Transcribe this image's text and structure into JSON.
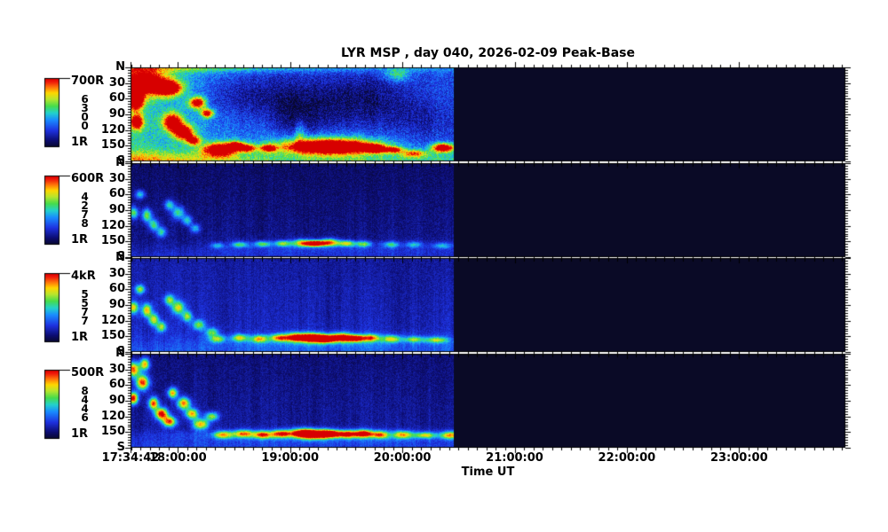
{
  "window": {
    "background": "#ffffff",
    "text_color": "#000000"
  },
  "chart_data": {
    "type": "heatmap",
    "title": "LYR MSP , day 040, 2026-02-09 Peak-Base",
    "xlabel": "Time UT",
    "x_tick_labels": [
      "17:34:42",
      "18:00:00",
      "19:00:00",
      "20:00:00",
      "21:00:00",
      "22:00:00",
      "23:00:00"
    ],
    "x_tick_hours": [
      17.5783,
      18,
      19,
      20,
      21,
      22,
      23
    ],
    "y_tick_labels": [
      "N",
      "30",
      "60",
      "90",
      "120",
      "150",
      "S"
    ],
    "y_tick_deg": [
      0,
      30,
      60,
      90,
      120,
      150,
      180
    ],
    "time_axis": {
      "start_hours": 17.5783,
      "end_hours": 23.947,
      "data_end_hours": 20.45,
      "minor_tick_minutes": 5,
      "zenith_minor_deg": 5,
      "zenith_range_deg": [
        0,
        180
      ]
    },
    "no_data_color": "#0a0a26",
    "colormap_stops": [
      [
        0.0,
        [
          8,
          8,
          38
        ]
      ],
      [
        0.1,
        [
          12,
          12,
          110
        ]
      ],
      [
        0.25,
        [
          30,
          50,
          225
        ]
      ],
      [
        0.4,
        [
          25,
          140,
          255
        ]
      ],
      [
        0.5,
        [
          35,
          210,
          205
        ]
      ],
      [
        0.6,
        [
          70,
          220,
          75
        ]
      ],
      [
        0.7,
        [
          185,
          230,
          45
        ]
      ],
      [
        0.79,
        [
          255,
          215,
          0
        ]
      ],
      [
        0.87,
        [
          255,
          120,
          10
        ]
      ],
      [
        0.95,
        [
          240,
          25,
          10
        ]
      ],
      [
        1.0,
        [
          215,
          0,
          0
        ]
      ]
    ],
    "blob_format": "[t_hours_UT, zenith_deg, sigma_t_hours, sigma_z_deg, intensity_0_to_1]",
    "panels": [
      {
        "wavelength_A": "6300",
        "colorbar_max": "700R",
        "colorbar_min": "1R",
        "render": {
          "seed": 11,
          "base": {
            "b0": 0.52,
            "b1": 0.29,
            "decay": 1.35,
            "grad": 0.0,
            "topAmp": 0.3,
            "topSig": 7,
            "topFade": 2.4,
            "botAmp": 0.26,
            "botSig": 14,
            "botBoost": 0.4
          },
          "noise": 0.1,
          "streak": 0.05,
          "blobs": [
            [
              17.7,
              30,
              0.14,
              16,
              0.95
            ],
            [
              17.62,
              65,
              0.05,
              12,
              0.85
            ],
            [
              17.63,
              105,
              0.04,
              10,
              0.8
            ],
            [
              17.92,
              40,
              0.08,
              10,
              0.85
            ],
            [
              17.95,
              105,
              0.06,
              12,
              0.85
            ],
            [
              18.05,
              125,
              0.06,
              10,
              0.85
            ],
            [
              18.17,
              68,
              0.05,
              8,
              0.8
            ],
            [
              18.14,
              140,
              0.04,
              6,
              0.7
            ],
            [
              18.26,
              88,
              0.04,
              6,
              0.75
            ],
            [
              18.37,
              157,
              0.1,
              9,
              0.95
            ],
            [
              18.52,
              150,
              0.05,
              6,
              0.7
            ],
            [
              18.62,
              155,
              0.05,
              5,
              0.65
            ],
            [
              18.8,
              155,
              0.05,
              5,
              0.6
            ],
            [
              19.35,
              152,
              0.28,
              9,
              1.05
            ],
            [
              19.35,
              148,
              0.38,
              16,
              0.3
            ],
            [
              19.08,
              125,
              0.03,
              18,
              0.25
            ],
            [
              19.75,
              156,
              0.06,
              5,
              0.85
            ],
            [
              19.92,
              158,
              0.05,
              4,
              0.7
            ],
            [
              20.1,
              165,
              0.08,
              5,
              0.5
            ],
            [
              20.36,
              154,
              0.07,
              6,
              0.95
            ],
            [
              19.95,
              15,
              0.08,
              9,
              0.3
            ],
            [
              18.62,
              55,
              0.3,
              30,
              -0.18
            ],
            [
              19.35,
              70,
              0.3,
              38,
              -0.15
            ],
            [
              19.05,
              95,
              0.15,
              30,
              -0.12
            ],
            [
              19.78,
              60,
              0.25,
              35,
              -0.12
            ],
            [
              20.2,
              100,
              0.2,
              25,
              -0.1
            ]
          ]
        }
      },
      {
        "wavelength_A": "4278",
        "colorbar_max": "600R",
        "colorbar_min": "1R",
        "render": {
          "seed": 22,
          "base": {
            "b0": 0.09,
            "b1": 0.09,
            "decay": 1,
            "grad": 0.06,
            "topAmp": 0,
            "topSig": 1,
            "botAmp": 0.07,
            "botSig": 11
          },
          "noise": 0.05,
          "streak": 0.05,
          "blobs": [
            [
              17.6,
              95,
              0.03,
              8,
              0.5
            ],
            [
              17.66,
              60,
              0.03,
              6,
              0.4
            ],
            [
              17.72,
              100,
              0.03,
              9,
              0.55
            ],
            [
              17.78,
              118,
              0.03,
              8,
              0.45
            ],
            [
              17.85,
              132,
              0.03,
              7,
              0.4
            ],
            [
              17.92,
              80,
              0.03,
              7,
              0.4
            ],
            [
              18.0,
              95,
              0.04,
              9,
              0.45
            ],
            [
              18.08,
              110,
              0.03,
              7,
              0.4
            ],
            [
              18.15,
              125,
              0.03,
              6,
              0.35
            ],
            [
              18.35,
              158,
              0.04,
              4,
              0.3
            ],
            [
              18.55,
              156,
              0.05,
              4,
              0.4
            ],
            [
              18.75,
              155,
              0.05,
              4,
              0.45
            ],
            [
              18.93,
              154,
              0.05,
              4,
              0.5
            ],
            [
              19.1,
              153,
              0.06,
              5,
              0.6
            ],
            [
              19.22,
              154,
              0.06,
              4,
              1.0
            ],
            [
              19.35,
              152,
              0.06,
              5,
              0.7
            ],
            [
              19.5,
              154,
              0.05,
              4,
              0.55
            ],
            [
              19.65,
              155,
              0.05,
              4,
              0.45
            ],
            [
              19.9,
              156,
              0.05,
              4,
              0.35
            ],
            [
              20.1,
              156,
              0.05,
              4,
              0.3
            ],
            [
              20.35,
              158,
              0.06,
              4,
              0.3
            ],
            [
              19.3,
              162,
              0.8,
              10,
              0.1
            ]
          ]
        }
      },
      {
        "wavelength_A": "5577",
        "colorbar_max": "4kR",
        "colorbar_min": "1R",
        "render": {
          "seed": 33,
          "base": {
            "b0": 0.17,
            "b1": 0.15,
            "decay": 2,
            "grad": 0.05,
            "topAmp": 0,
            "topSig": 1,
            "botAmp": 0.08,
            "botSig": 12
          },
          "noise": 0.05,
          "streak": 0.07,
          "blobs": [
            [
              17.6,
              95,
              0.03,
              8,
              0.6
            ],
            [
              17.66,
              60,
              0.03,
              6,
              0.5
            ],
            [
              17.72,
              100,
              0.03,
              9,
              0.65
            ],
            [
              17.78,
              118,
              0.03,
              8,
              0.55
            ],
            [
              17.85,
              132,
              0.03,
              7,
              0.5
            ],
            [
              17.92,
              80,
              0.03,
              7,
              0.5
            ],
            [
              18.0,
              95,
              0.04,
              9,
              0.55
            ],
            [
              18.08,
              112,
              0.03,
              7,
              0.5
            ],
            [
              18.18,
              128,
              0.04,
              7,
              0.45
            ],
            [
              18.3,
              142,
              0.04,
              6,
              0.4
            ],
            [
              18.35,
              155,
              0.05,
              5,
              0.45
            ],
            [
              18.55,
              153,
              0.05,
              5,
              0.5
            ],
            [
              18.72,
              155,
              0.05,
              5,
              0.55
            ],
            [
              18.9,
              153,
              0.06,
              5,
              0.6
            ],
            [
              19.05,
              152,
              0.07,
              6,
              0.75
            ],
            [
              19.2,
              153,
              0.08,
              6,
              1.0
            ],
            [
              19.32,
              155,
              0.06,
              5,
              0.95
            ],
            [
              19.45,
              152,
              0.06,
              6,
              0.8
            ],
            [
              19.58,
              154,
              0.06,
              5,
              0.85
            ],
            [
              19.72,
              153,
              0.05,
              5,
              0.6
            ],
            [
              19.9,
              155,
              0.06,
              5,
              0.5
            ],
            [
              20.1,
              156,
              0.06,
              4,
              0.4
            ],
            [
              20.3,
              157,
              0.07,
              4,
              0.45
            ],
            [
              19.4,
              160,
              0.9,
              11,
              0.13
            ]
          ]
        }
      },
      {
        "wavelength_A": "8446",
        "colorbar_max": "500R",
        "colorbar_min": "1R",
        "render": {
          "seed": 44,
          "base": {
            "b0": 0.11,
            "b1": 0.11,
            "decay": 1,
            "grad": 0.06,
            "topAmp": 0,
            "topSig": 1,
            "botAmp": 0.1,
            "botSig": 12
          },
          "noise": 0.05,
          "streak": 0.06,
          "blobs": [
            [
              17.6,
              30,
              0.04,
              10,
              0.8
            ],
            [
              17.6,
              85,
              0.03,
              8,
              0.9
            ],
            [
              17.68,
              55,
              0.04,
              10,
              0.85
            ],
            [
              17.7,
              20,
              0.03,
              8,
              0.7
            ],
            [
              17.78,
              95,
              0.03,
              8,
              0.8
            ],
            [
              17.85,
              115,
              0.04,
              8,
              0.9
            ],
            [
              17.92,
              130,
              0.04,
              7,
              0.8
            ],
            [
              17.95,
              75,
              0.03,
              7,
              0.7
            ],
            [
              18.05,
              95,
              0.04,
              8,
              0.75
            ],
            [
              18.12,
              115,
              0.04,
              7,
              0.7
            ],
            [
              18.2,
              135,
              0.05,
              7,
              0.65
            ],
            [
              18.3,
              120,
              0.04,
              6,
              0.55
            ],
            [
              18.4,
              155,
              0.06,
              5,
              0.55
            ],
            [
              18.58,
              153,
              0.06,
              5,
              0.6
            ],
            [
              18.75,
              155,
              0.06,
              5,
              0.65
            ],
            [
              18.92,
              153,
              0.06,
              5,
              0.7
            ],
            [
              19.1,
              152,
              0.07,
              6,
              0.85
            ],
            [
              19.22,
              154,
              0.08,
              6,
              1.0
            ],
            [
              19.35,
              153,
              0.06,
              5,
              0.9
            ],
            [
              19.5,
              154,
              0.06,
              5,
              0.75
            ],
            [
              19.65,
              153,
              0.06,
              5,
              0.85
            ],
            [
              19.8,
              155,
              0.05,
              5,
              0.6
            ],
            [
              20.0,
              155,
              0.06,
              5,
              0.55
            ],
            [
              20.2,
              156,
              0.06,
              4,
              0.5
            ],
            [
              20.42,
              156,
              0.06,
              5,
              0.6
            ],
            [
              19.3,
              157,
              1.0,
              8,
              0.2
            ]
          ]
        }
      }
    ]
  }
}
